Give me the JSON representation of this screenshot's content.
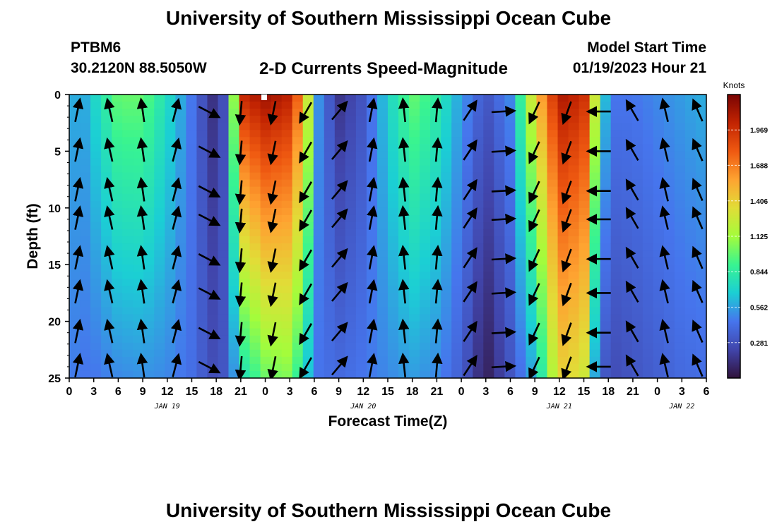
{
  "page": {
    "title": "University of Southern Mississippi Ocean Cube",
    "station_id": "PTBM6",
    "station_coords": "30.2120N  88.5050W",
    "subtitle": "2-D Currents Speed-Magnitude",
    "model_label": "Model Start Time",
    "model_time": "01/19/2023 Hour 21",
    "footer_title": "University of Southern Mississippi Ocean Cube"
  },
  "chart_data": {
    "type": "heatmap",
    "title": "2-D Currents Speed-Magnitude",
    "xlabel": "Forecast Time(Z)",
    "ylabel": "Depth (ft)",
    "y_ticks": [
      "0",
      "5",
      "10",
      "15",
      "20",
      "25"
    ],
    "y_range": [
      0,
      25
    ],
    "y_inverted": true,
    "x_tick_labels": [
      "0",
      "3",
      "6",
      "9",
      "12",
      "15",
      "18",
      "21",
      "0",
      "3",
      "6",
      "9",
      "12",
      "15",
      "18",
      "21",
      "0",
      "3",
      "6",
      "9",
      "12",
      "15",
      "18",
      "21",
      "0",
      "3",
      "6"
    ],
    "x_range_hours": [
      0,
      78
    ],
    "date_labels": [
      {
        "text": "JAN 19",
        "hour": 12
      },
      {
        "text": "JAN 20",
        "hour": 36
      },
      {
        "text": "JAN 21",
        "hour": 60
      },
      {
        "text": "JAN 22",
        "hour": 75
      }
    ],
    "colorbar": {
      "unit": "Knots",
      "range": [
        0,
        2.25
      ],
      "ticks": [
        "1.969",
        "1.688",
        "1.406",
        "1.125",
        "0.844",
        "0.562",
        "0.281"
      ],
      "tick_values": [
        1.969,
        1.688,
        1.406,
        1.125,
        0.844,
        0.562,
        0.281
      ]
    },
    "speed_profile": [
      {
        "hour": 0,
        "top": 0.62,
        "bot": 0.48
      },
      {
        "hour": 1.5,
        "top": 0.55,
        "bot": 0.45
      },
      {
        "hour": 3,
        "top": 0.7,
        "bot": 0.45
      },
      {
        "hour": 6,
        "top": 1.0,
        "bot": 0.5
      },
      {
        "hour": 9,
        "top": 1.0,
        "bot": 0.52
      },
      {
        "hour": 12,
        "top": 0.75,
        "bot": 0.5
      },
      {
        "hour": 15,
        "top": 0.45,
        "bot": 0.42
      },
      {
        "hour": 17,
        "top": 0.2,
        "bot": 0.3
      },
      {
        "hour": 18,
        "top": 0.1,
        "bot": 0.25
      },
      {
        "hour": 19.5,
        "top": 0.4,
        "bot": 0.35
      },
      {
        "hour": 21,
        "top": 2.0,
        "bot": 0.75
      },
      {
        "hour": 24,
        "top": 2.15,
        "bot": 1.0
      },
      {
        "hour": 27,
        "top": 2.05,
        "bot": 1.05
      },
      {
        "hour": 29,
        "top": 1.5,
        "bot": 0.7
      },
      {
        "hour": 30,
        "top": 0.6,
        "bot": 0.45
      },
      {
        "hour": 33,
        "top": 0.15,
        "bot": 0.4
      },
      {
        "hour": 36,
        "top": 0.3,
        "bot": 0.45
      },
      {
        "hour": 39,
        "top": 0.7,
        "bot": 0.5
      },
      {
        "hour": 42,
        "top": 1.0,
        "bot": 0.55
      },
      {
        "hour": 45,
        "top": 0.85,
        "bot": 0.5
      },
      {
        "hour": 48,
        "top": 0.55,
        "bot": 0.35
      },
      {
        "hour": 51,
        "top": 0.3,
        "bot": 0.05
      },
      {
        "hour": 54,
        "top": 0.5,
        "bot": 0.3
      },
      {
        "hour": 57,
        "top": 1.4,
        "bot": 0.6
      },
      {
        "hour": 60,
        "top": 2.1,
        "bot": 1.4
      },
      {
        "hour": 63,
        "top": 2.0,
        "bot": 1.3
      },
      {
        "hour": 64.5,
        "top": 1.2,
        "bot": 0.5
      },
      {
        "hour": 66,
        "top": 0.45,
        "bot": 0.25
      },
      {
        "hour": 69,
        "top": 0.45,
        "bot": 0.3
      },
      {
        "hour": 72,
        "top": 0.5,
        "bot": 0.35
      },
      {
        "hour": 75,
        "top": 0.55,
        "bot": 0.4
      },
      {
        "hour": 78,
        "top": 0.6,
        "bot": 0.42
      }
    ],
    "current_direction_deg": [
      {
        "hour": 0,
        "dir": 25
      },
      {
        "hour": 3,
        "dir": -15
      },
      {
        "hour": 9,
        "dir": -8
      },
      {
        "hour": 14,
        "dir": 20
      },
      {
        "hour": 18,
        "dir": 150
      },
      {
        "hour": 21,
        "dir": 185
      },
      {
        "hour": 27,
        "dir": 195
      },
      {
        "hour": 29,
        "dir": 210
      },
      {
        "hour": 33,
        "dir": 40
      },
      {
        "hour": 36,
        "dir": 15
      },
      {
        "hour": 42,
        "dir": -10
      },
      {
        "hour": 48,
        "dir": 20
      },
      {
        "hour": 51,
        "dir": 60
      },
      {
        "hour": 54,
        "dir": 100
      },
      {
        "hour": 57,
        "dir": 205
      },
      {
        "hour": 60,
        "dir": 195
      },
      {
        "hour": 63,
        "dir": 210
      },
      {
        "hour": 66,
        "dir": 300
      },
      {
        "hour": 69,
        "dir": 330
      },
      {
        "hour": 72,
        "dir": 350
      },
      {
        "hour": 75,
        "dir": 340
      },
      {
        "hour": 78,
        "dir": 335
      }
    ],
    "vector_rows_depth_ft": [
      1.5,
      5,
      8.5,
      11,
      14.5,
      17.5,
      21,
      24
    ]
  }
}
